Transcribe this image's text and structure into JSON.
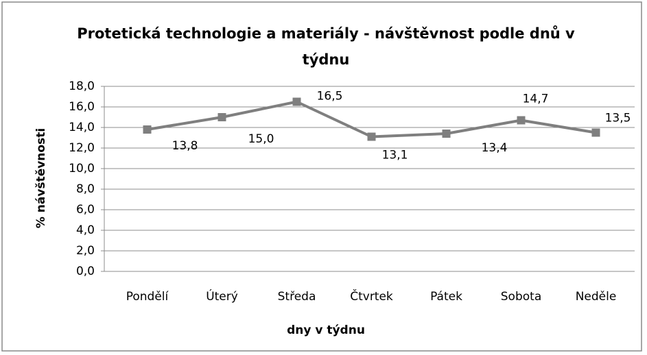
{
  "chart_data": {
    "type": "line",
    "title": "Protetická technologie a materiály - návštěvnost podle dnů v týdnu",
    "x_label": "dny v týdnu",
    "y_label": "% návštěvnosti",
    "categories": [
      "Pondělí",
      "Úterý",
      "Středa",
      "Čtvrtek",
      "Pátek",
      "Sobota",
      "Neděle"
    ],
    "series": [
      {
        "name": "% návštěvnosti",
        "color": "#7f7f7f",
        "values": [
          13.8,
          15.0,
          16.5,
          13.1,
          13.4,
          14.7,
          13.5
        ],
        "value_labels": [
          "13,8",
          "15,0",
          "16,5",
          "13,1",
          "13,4",
          "14,7",
          "13,5"
        ]
      }
    ],
    "ylim": [
      0,
      18
    ],
    "yticks": [
      {
        "value": 0,
        "label": "0,0"
      },
      {
        "value": 2,
        "label": "2,0"
      },
      {
        "value": 4,
        "label": "4,0"
      },
      {
        "value": 6,
        "label": "6,0"
      },
      {
        "value": 8,
        "label": "8,0"
      },
      {
        "value": 10,
        "label": "10,0"
      },
      {
        "value": 12,
        "label": "12,0"
      },
      {
        "value": 14,
        "label": "14,0"
      },
      {
        "value": 16,
        "label": "16,0"
      },
      {
        "value": 18,
        "label": "18,0"
      }
    ],
    "grid": true
  }
}
